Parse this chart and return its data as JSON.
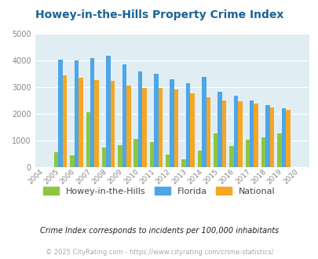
{
  "title": "Howey-in-the-Hills Property Crime Index",
  "years": [
    2004,
    2005,
    2006,
    2007,
    2008,
    2009,
    2010,
    2011,
    2012,
    2013,
    2014,
    2015,
    2016,
    2017,
    2018,
    2019,
    2020
  ],
  "howey": [
    0,
    550,
    450,
    2050,
    730,
    820,
    1050,
    950,
    480,
    280,
    620,
    1260,
    790,
    1020,
    1100,
    1270,
    0
  ],
  "florida": [
    0,
    4020,
    3990,
    4090,
    4160,
    3840,
    3580,
    3510,
    3300,
    3130,
    3380,
    2820,
    2680,
    2510,
    2310,
    2210,
    0
  ],
  "national": [
    0,
    3450,
    3340,
    3250,
    3220,
    3050,
    2970,
    2960,
    2900,
    2750,
    2600,
    2490,
    2470,
    2370,
    2230,
    2150,
    0
  ],
  "howey_color": "#8dc63f",
  "florida_color": "#4da6e8",
  "national_color": "#f5a623",
  "bg_color": "#e0eef4",
  "ylim": [
    0,
    5000
  ],
  "yticks": [
    0,
    1000,
    2000,
    3000,
    4000,
    5000
  ],
  "title_color": "#1a6496",
  "footnote1": "Crime Index corresponds to incidents per 100,000 inhabitants",
  "footnote2": "© 2025 CityRating.com - https://www.cityrating.com/crime-statistics/",
  "legend_labels": [
    "Howey-in-the-Hills",
    "Florida",
    "National"
  ]
}
